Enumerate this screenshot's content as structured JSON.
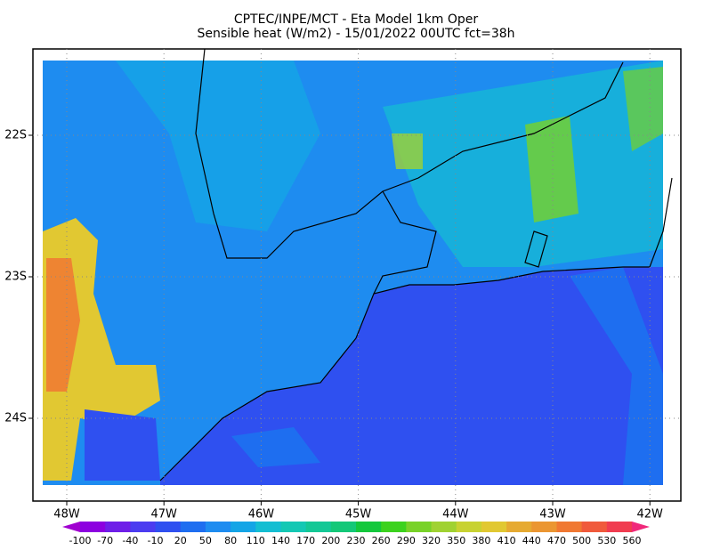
{
  "header": {
    "title": "CPTEC/INPE/MCT -  Eta Model 1km Oper",
    "subtitle": "Sensible heat (W/m2) - 15/01/2022 00UTC fct=38h"
  },
  "map": {
    "lon_labels": [
      "48W",
      "47W",
      "46W",
      "45W",
      "44W",
      "43W",
      "42W"
    ],
    "lat_labels": [
      "22S",
      "23S",
      "24S"
    ]
  },
  "colorbar": {
    "levels": [
      -100,
      -70,
      -40,
      -10,
      20,
      50,
      80,
      110,
      140,
      170,
      200,
      230,
      260,
      290,
      320,
      350,
      380,
      410,
      440,
      470,
      500,
      530,
      560
    ],
    "colors": [
      "#a000d0",
      "#8c00e0",
      "#6e1ee8",
      "#4b3cf0",
      "#2f50f0",
      "#1e6ef0",
      "#1e8cf0",
      "#14a5e6",
      "#14bed2",
      "#14c8b4",
      "#14c896",
      "#14c878",
      "#14c83c",
      "#3cd21e",
      "#78d228",
      "#a0d232",
      "#c8d232",
      "#e1c832",
      "#e6aa32",
      "#eb9632",
      "#f07832",
      "#f05a3c",
      "#f03c50",
      "#f0287a"
    ]
  }
}
